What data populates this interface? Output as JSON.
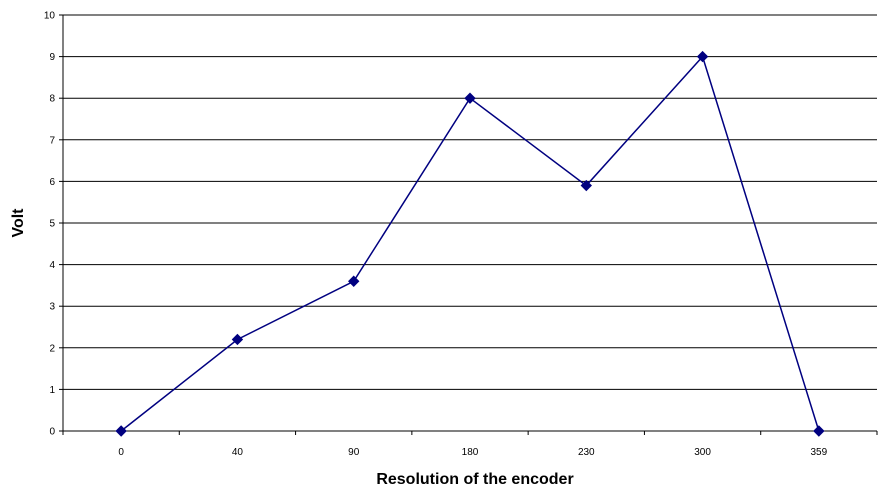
{
  "chart_data": {
    "type": "line",
    "title": "",
    "xlabel": "Resolution of the encoder",
    "ylabel": "Volt",
    "categories": [
      "0",
      "40",
      "90",
      "180",
      "230",
      "300",
      "359"
    ],
    "series": [
      {
        "values": [
          0,
          2.2,
          3.6,
          8.0,
          5.9,
          9.0,
          0
        ],
        "color": "#000080",
        "marker": "diamond"
      }
    ],
    "ylim": [
      0,
      10
    ],
    "yticks": [
      0,
      1,
      2,
      3,
      4,
      5,
      6,
      7,
      8,
      9,
      10
    ],
    "grid": "horizontal",
    "legend": "none"
  }
}
